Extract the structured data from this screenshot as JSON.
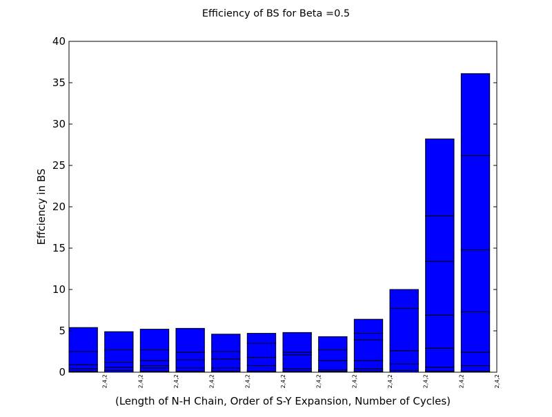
{
  "chart_data": {
    "type": "bar",
    "stacked": true,
    "title": "Efficiency of BS for Beta =0.5",
    "xlabel": "(Length of N-H Chain, Order of S-Y Expansion, Number of Cycles)",
    "ylabel": "Effciency in BS",
    "ylim": [
      0,
      40
    ],
    "yticks": [
      0,
      5,
      10,
      15,
      20,
      25,
      30,
      35,
      40
    ],
    "ytick_labels": [
      "0",
      "5",
      "10",
      "15",
      "20",
      "25",
      "30",
      "35",
      "40"
    ],
    "categories": [
      "2,4,2",
      "2,4,2",
      "2,4,2",
      "2,4,2",
      "2,4,2",
      "2,4,2",
      "2,4,2",
      "2,4,2",
      "2,4,2",
      "2,4,2",
      "2,4,2",
      "2,4,2"
    ],
    "bar_color": "#0000ff",
    "edge_color": "#000000",
    "segment_boundaries": [
      [
        0.1,
        0.4,
        0.9,
        2.5,
        5.4
      ],
      [
        0.2,
        0.6,
        1.2,
        2.7,
        4.9
      ],
      [
        0.1,
        0.5,
        0.8,
        1.4,
        2.7,
        5.2
      ],
      [
        0.1,
        0.5,
        1.5,
        2.4,
        5.3
      ],
      [
        0.1,
        0.5,
        1.6,
        2.5,
        4.6
      ],
      [
        0.1,
        0.8,
        1.8,
        3.5,
        4.7
      ],
      [
        0.1,
        0.4,
        2.1,
        2.4,
        4.8
      ],
      [
        0.1,
        0.3,
        1.4,
        2.7,
        4.3
      ],
      [
        0.1,
        0.4,
        1.4,
        3.9,
        4.7,
        6.4
      ],
      [
        0.2,
        1.0,
        2.6,
        7.7,
        10.0
      ],
      [
        0.1,
        0.6,
        2.9,
        6.9,
        13.4,
        18.9,
        28.2
      ],
      [
        0.1,
        0.8,
        2.4,
        7.3,
        14.8,
        26.2,
        36.1
      ]
    ]
  }
}
